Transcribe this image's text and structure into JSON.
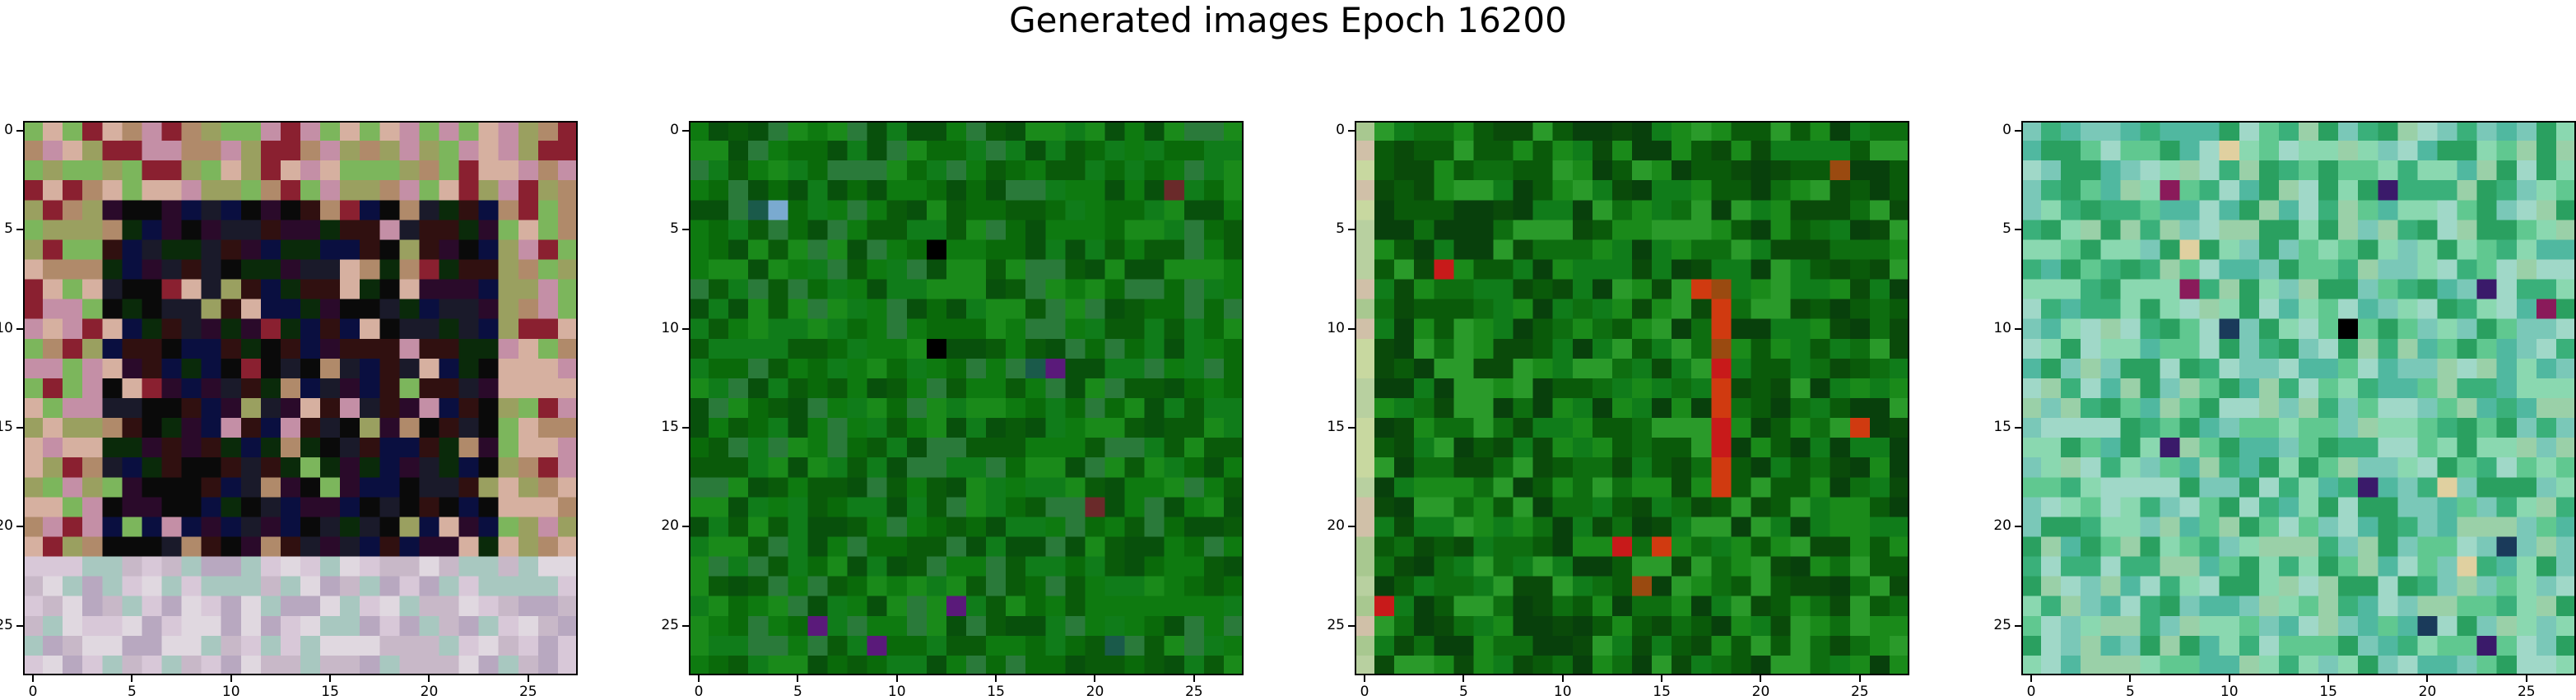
{
  "figure": {
    "title": "Generated images Epoch 16200"
  },
  "chart_data": [
    {
      "type": "heatmap",
      "grid_size": [
        28,
        28
      ],
      "xticks": [
        0,
        5,
        10,
        15,
        20,
        25
      ],
      "yticks": [
        0,
        5,
        10,
        15,
        20,
        25
      ],
      "xlim": [
        -0.5,
        27.5
      ],
      "ylim": [
        27.5,
        -0.5
      ],
      "palette": [
        "#9aa060",
        "#b08a6a",
        "#c48fa6",
        "#7cb65c",
        "#8a2030",
        "#d6b0a0"
      ],
      "center_palette": [
        "#0a0a0a",
        "#1a1a2a",
        "#0a0f40",
        "#2a0a2a",
        "#0a2a0a",
        "#301010"
      ],
      "bottom_palette": [
        "#d8c8d8",
        "#c8b8c8",
        "#e0d8e0",
        "#b8a8c0",
        "#a8c8c0"
      ]
    },
    {
      "type": "heatmap",
      "grid_size": [
        28,
        28
      ],
      "xticks": [
        0,
        5,
        10,
        15,
        20,
        25
      ],
      "yticks": [
        0,
        5,
        10,
        15,
        20,
        25
      ],
      "xlim": [
        -0.5,
        27.5
      ],
      "ylim": [
        27.5,
        -0.5
      ],
      "palette": [
        "#0a6a0a",
        "#0e7a10",
        "#107c1a",
        "#0a5a0a",
        "#1a8a1a",
        "#08500c",
        "#2a7a3a"
      ],
      "accent_palette": [
        "#5a1a7a",
        "#7aaad0",
        "#6a2a2a",
        "#1a5a4a",
        "#000000"
      ]
    },
    {
      "type": "heatmap",
      "grid_size": [
        28,
        28
      ],
      "xticks": [
        0,
        5,
        10,
        15,
        20,
        25
      ],
      "yticks": [
        0,
        5,
        10,
        15,
        20,
        25
      ],
      "xlim": [
        -0.5,
        27.5
      ],
      "ylim": [
        27.5,
        -0.5
      ],
      "palette": [
        "#0a5a0a",
        "#0e6e10",
        "#107c1a",
        "#0a4a0a",
        "#1a8a1a",
        "#08400c",
        "#2a9a2a"
      ],
      "stripe_colors": [
        "#c81a1a",
        "#d03a10",
        "#9a4a10"
      ],
      "edge_palette": [
        "#c8d8a0",
        "#d0c0a8",
        "#b8d0a0",
        "#a8c890"
      ]
    },
    {
      "type": "heatmap",
      "grid_size": [
        28,
        28
      ],
      "xticks": [
        0,
        5,
        10,
        15,
        20,
        25
      ],
      "yticks": [
        0,
        5,
        10,
        15,
        20,
        25
      ],
      "xlim": [
        -0.5,
        27.5
      ],
      "ylim": [
        27.5,
        -0.5
      ],
      "palette": [
        "#3ab07a",
        "#60c890",
        "#8ad8b0",
        "#2aa060",
        "#a0d8c8",
        "#50b8a0",
        "#7ac8b8",
        "#9ad0a8"
      ],
      "accent_palette": [
        "#000000",
        "#3a1a6a",
        "#8a1a5a",
        "#e0d0a0",
        "#1a3a5a"
      ]
    }
  ]
}
